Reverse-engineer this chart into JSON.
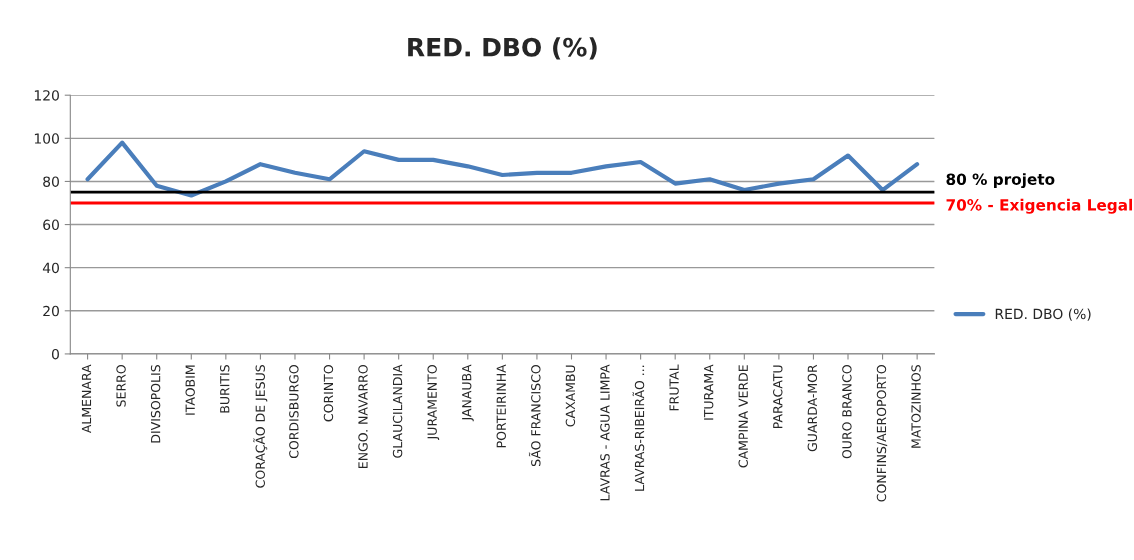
{
  "chart_data": {
    "type": "line",
    "title": "RED. DBO (%)",
    "categories": [
      "ALMENARA",
      "SERRO",
      "DIVISOPOLIS",
      "ITAOBIM",
      "BURITIS",
      "CORAÇÃO DE JESUS",
      "CORDISBURGO",
      "CORINTO",
      "ENGO. NAVARRO",
      "GLAUCILANDIA",
      "JURAMENTO",
      "JANAUBA",
      "PORTEIRINHA",
      "SÃO FRANCISCO",
      "CAXAMBU",
      "LAVRAS - AGUA LIMPA",
      "LAVRAS-RIBEIRÃO ...",
      "FRUTAL",
      "ITURAMA",
      "CAMPINA VERDE",
      "PARACATU",
      "GUARDA-MOR",
      "OURO BRANCO",
      "CONFINS/AEROPORTO",
      "MATOZINHOS"
    ],
    "series": [
      {
        "name": "RED. DBO (%)",
        "color": "#4a7ebb",
        "values": [
          81,
          98,
          78,
          73.5,
          80,
          88,
          84,
          81,
          94,
          90,
          90,
          87,
          83,
          84,
          84,
          87,
          89,
          79,
          81,
          76,
          79,
          81,
          92,
          76,
          88
        ]
      }
    ],
    "ylim": [
      0,
      120
    ],
    "yticks": [
      0,
      20,
      40,
      60,
      80,
      100,
      120
    ],
    "grid": "y",
    "legend": "right",
    "marker": "none",
    "line_style": "solid",
    "ref_lines": [
      {
        "axis": "y",
        "value": 75,
        "label": "80 % projeto",
        "color": "#000000"
      },
      {
        "axis": "y",
        "value": 70,
        "label": "70% - Exigencia Legal",
        "color": "#ff0000"
      }
    ]
  }
}
